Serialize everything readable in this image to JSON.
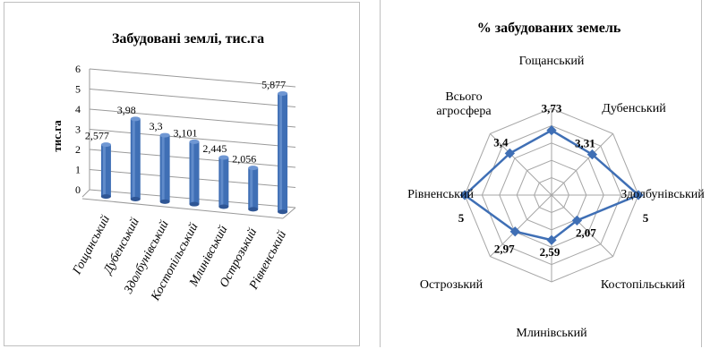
{
  "chart_data": [
    {
      "type": "bar",
      "title": "Забудовані землі, тис.га",
      "ylabel": "тис.га",
      "categories": [
        "Гощанський",
        "Дубенський",
        "Здолбунівський",
        "Костопільський",
        "Млинівський",
        "Острозький",
        "Рівненський"
      ],
      "values": [
        2.577,
        3.98,
        3.3,
        3.101,
        2.445,
        2.056,
        5.877
      ],
      "data_labels": [
        "2,577",
        "3,98",
        "3,3",
        "3,101",
        "2,445",
        "2,056",
        "5,877"
      ],
      "yticks": [
        "0",
        "1",
        "2",
        "3",
        "4",
        "5",
        "6"
      ],
      "ylim": [
        0,
        6
      ],
      "color": "#3f6fb5"
    },
    {
      "type": "radar",
      "title": "% забудованих земель",
      "categories": [
        "Гощанський",
        "Дубенський",
        "Здолбунівський",
        "Костопільський",
        "Млинівський",
        "Острозький",
        "Рівненський",
        "Всього агросфера"
      ],
      "category_lines": [
        [
          "Гощанський"
        ],
        [
          "Дубенський"
        ],
        [
          "Здолбунівський"
        ],
        [
          "Костопільський"
        ],
        [
          "Млинівський"
        ],
        [
          "Острозький"
        ],
        [
          "Рівненський"
        ],
        [
          "Всього",
          "агросфера"
        ]
      ],
      "values": [
        3.73,
        3.31,
        5,
        2.07,
        2.59,
        2.97,
        5,
        3.4
      ],
      "data_labels": [
        "3,73",
        "3,31",
        "5",
        "2,07",
        "2,59",
        "2,97",
        "5",
        "3,4"
      ],
      "rlim": [
        0,
        5
      ],
      "color": "#3f6fb5"
    }
  ]
}
